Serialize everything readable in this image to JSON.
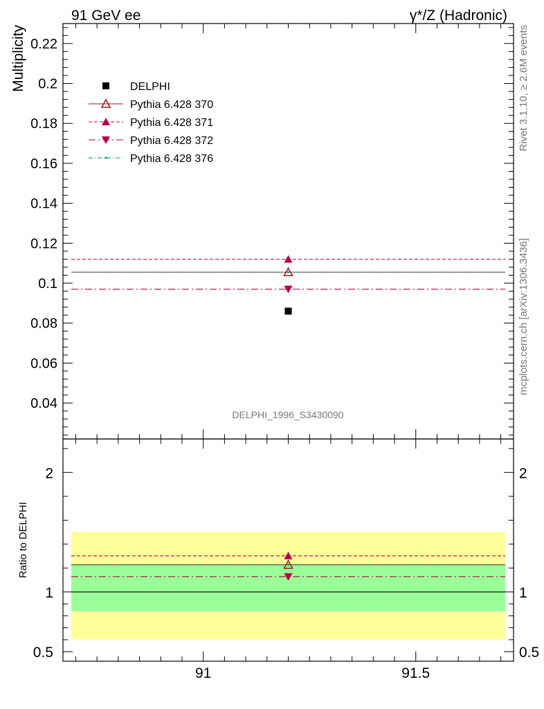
{
  "header": {
    "left_title": "91 GeV ee",
    "right_title": "γ*/Z (Hadronic)"
  },
  "side_text": {
    "rivet": "Rivet 3.1.10, ≥ 2.6M events",
    "mcplots": "mcplots.cern.ch [arXiv:1306.3436]"
  },
  "watermark": "DELPHI_1996_S3430090",
  "colors": {
    "data": "#000000",
    "p370": "#8b1a1a",
    "p371": "#b5004f",
    "p372": "#b5004f",
    "p376": "#008b6b",
    "band_inner": "#99ff99",
    "band_outer": "#ffff99"
  },
  "chart_data": [
    {
      "type": "scatter",
      "panel": "main",
      "ylabel": "Multiplicity",
      "xlim": [
        90.67,
        91.73
      ],
      "ylim": [
        0.022,
        0.23
      ],
      "yticks": [
        0.04,
        0.06,
        0.08,
        0.1,
        0.12,
        0.14,
        0.16,
        0.18,
        0.2,
        0.22
      ],
      "ytick_labels": [
        "0.04",
        "0.06",
        "0.08",
        "0.1",
        "0.12",
        "0.14",
        "0.16",
        "0.18",
        "0.2",
        "0.22"
      ],
      "legend_position": "top-left",
      "x_point": 91.2,
      "series": [
        {
          "name": "DELPHI",
          "marker": "square",
          "y": 0.086
        },
        {
          "name": "Pythia 6.428 370",
          "line": "solid",
          "marker": "triangle-up-open",
          "y": 0.1055
        },
        {
          "name": "Pythia 6.428 371",
          "line": "dashed",
          "marker": "triangle-up",
          "y": 0.112
        },
        {
          "name": "Pythia 6.428 372",
          "line": "dashdot",
          "marker": "triangle-down",
          "y": 0.097
        },
        {
          "name": "Pythia 6.428 376",
          "line": "dashdot-fine",
          "marker": "dot",
          "y": 0.1055
        }
      ]
    },
    {
      "type": "line",
      "panel": "ratio",
      "ylabel": "Ratio to DELPHI",
      "xlim": [
        90.67,
        91.73
      ],
      "ylim": [
        0.42,
        2.28
      ],
      "yticks": [
        0.5,
        1,
        2
      ],
      "ytick_labels": [
        "0.5",
        "1",
        "2"
      ],
      "xticks": [
        91,
        91.5
      ],
      "xtick_labels": [
        "91",
        "91.5"
      ],
      "band_inner": [
        0.837,
        1.225
      ],
      "band_outer": [
        0.603,
        1.5
      ],
      "ratios": [
        {
          "name": "Pythia 6.428 370",
          "y": 1.227
        },
        {
          "name": "Pythia 6.428 371",
          "y": 1.302
        },
        {
          "name": "Pythia 6.428 372",
          "y": 1.128
        },
        {
          "name": "Pythia 6.428 376",
          "y": 1.227
        }
      ]
    }
  ]
}
